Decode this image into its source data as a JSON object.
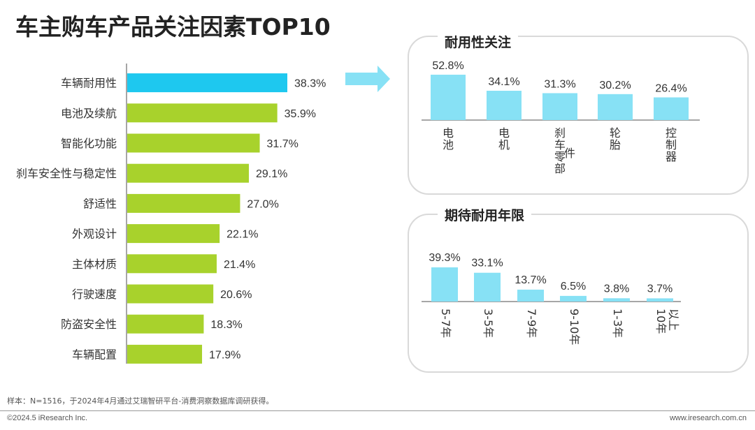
{
  "title": "车主购车产品关注因素TOP10",
  "colors": {
    "highlight": "#1ec8ef",
    "bar": "#a8d22c",
    "light_blue": "#87e1f5",
    "arrow": "#87e1f5",
    "axis": "#888888",
    "panel_border": "#d9d9d9"
  },
  "arrow_icon": "right-arrow-icon",
  "durability_title": "耐用性关注",
  "lifespan_title": "期待耐用年限",
  "footer": {
    "note": "样本：N=1516，于2024年4月通过艾瑞智研平台-消费洞察数据库调研获得。",
    "copyright": "©2024.5 iResearch Inc.",
    "website": "www.iresearch.com.cn"
  },
  "chart_data": [
    {
      "type": "bar",
      "orientation": "horizontal",
      "categories": [
        "车辆耐用性",
        "电池及续航",
        "智能化功能",
        "刹车安全性与稳定性",
        "舒适性",
        "外观设计",
        "主体材质",
        "行驶速度",
        "防盗安全性",
        "车辆配置"
      ],
      "values": [
        38.3,
        35.9,
        31.7,
        29.1,
        27.0,
        22.1,
        21.4,
        20.6,
        18.3,
        17.9
      ],
      "labels": [
        "38.3%",
        "35.9%",
        "31.7%",
        "29.1%",
        "27.0%",
        "22.1%",
        "21.4%",
        "20.6%",
        "18.3%",
        "17.9%"
      ],
      "highlight_index": 0,
      "xlim": [
        0,
        40
      ]
    },
    {
      "type": "bar",
      "categories": [
        "电池",
        "电机",
        "刹车零部件",
        "轮胎",
        "控制器"
      ],
      "category_lines": [
        [
          "电",
          "池"
        ],
        [
          "电",
          "机"
        ],
        [
          "刹",
          "车",
          "零",
          "部"
        ],
        [
          "轮",
          "胎"
        ],
        [
          "控",
          "制",
          "器"
        ]
      ],
      "extra_glyph": "件",
      "values": [
        52.8,
        34.1,
        31.3,
        30.2,
        26.4
      ],
      "labels": [
        "52.8%",
        "34.1%",
        "31.3%",
        "30.2%",
        "26.4%"
      ],
      "ylim": [
        0,
        55
      ]
    },
    {
      "type": "bar",
      "categories": [
        "5-7年",
        "3-5年",
        "7-9年",
        "9-10年",
        "1-3年",
        "10年以上"
      ],
      "category_lines": [
        [
          "5-7年"
        ],
        [
          "3-5年"
        ],
        [
          "7-9年"
        ],
        [
          "9-10年"
        ],
        [
          "1-3年"
        ],
        [
          "10年",
          "以上"
        ]
      ],
      "values": [
        39.3,
        33.1,
        13.7,
        6.5,
        3.8,
        3.7
      ],
      "labels": [
        "39.3%",
        "33.1%",
        "13.7%",
        "6.5%",
        "3.8%",
        "3.7%"
      ],
      "ylim": [
        0,
        40
      ]
    }
  ]
}
